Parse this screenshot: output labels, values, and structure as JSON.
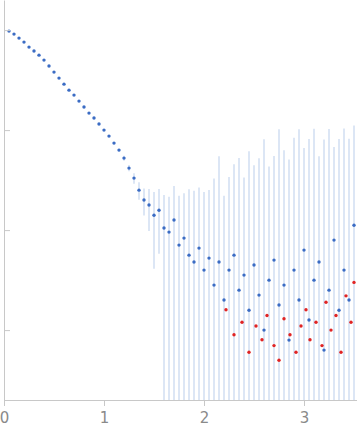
{
  "chart_data": {
    "type": "scatter",
    "log": "y",
    "grid": false,
    "tick_labels": "x",
    "xlim": [
      0,
      3.53
    ],
    "xticks": [
      0,
      1,
      2,
      3
    ],
    "ylim": [
      0.0002,
      2
    ],
    "yticks": [
      0.001,
      0.01,
      0.1,
      1
    ],
    "series": [
      {
        "color": "#3b6cc4",
        "marker": "circle",
        "x": [
          0.05,
          0.1,
          0.15,
          0.2,
          0.25,
          0.3,
          0.35,
          0.4,
          0.45,
          0.5,
          0.55,
          0.6,
          0.65,
          0.7,
          0.75,
          0.8,
          0.85,
          0.9,
          0.95,
          1.0,
          1.05,
          1.1,
          1.15,
          1.2,
          1.25,
          1.3,
          1.35,
          1.4,
          1.45,
          1.5,
          1.55,
          1.6,
          1.65,
          1.7,
          1.75,
          1.8,
          1.85,
          1.9,
          1.95,
          2.0,
          2.05,
          2.1,
          2.15,
          2.2,
          2.25,
          2.3,
          2.35,
          2.4,
          2.45,
          2.5,
          2.55,
          2.6,
          2.65,
          2.7,
          2.75,
          2.8,
          2.85,
          2.9,
          2.95,
          3.0,
          3.05,
          3.1,
          3.15,
          3.2,
          3.25,
          3.3,
          3.35,
          3.4,
          3.45,
          3.5
        ],
        "values": [
          0.977,
          0.912,
          0.832,
          0.759,
          0.676,
          0.617,
          0.562,
          0.501,
          0.437,
          0.38,
          0.331,
          0.288,
          0.251,
          0.224,
          0.195,
          0.17,
          0.148,
          0.132,
          0.115,
          0.1,
          0.0871,
          0.0741,
          0.0631,
          0.0525,
          0.0417,
          0.0331,
          0.0251,
          0.02,
          0.0178,
          0.0141,
          0.0158,
          0.0105,
          0.00955,
          0.0126,
          0.00708,
          0.00832,
          0.00562,
          0.00479,
          0.00661,
          0.00398,
          0.00525,
          0.00282,
          0.00479,
          0.002,
          0.00398,
          0.00562,
          0.00251,
          0.00355,
          0.00158,
          0.00447,
          0.00224,
          0.001,
          0.00316,
          0.00501,
          0.00178,
          0.00282,
          0.000794,
          0.00398,
          0.002,
          0.00631,
          0.00126,
          0.00316,
          0.00479,
          0.000631,
          0.00251,
          0.00794,
          0.00158,
          0.00398,
          0.002,
          0.0112
        ],
        "errors": [
          0.005,
          0.005,
          0.004,
          0.004,
          0.004,
          0.003,
          0.003,
          0.003,
          0.003,
          0.003,
          0.002,
          0.002,
          0.002,
          0.002,
          0.002,
          0.002,
          0.002,
          0.002,
          0.002,
          0.002,
          0.002,
          0.002,
          0.002,
          0.003,
          0.003,
          0.004,
          0.005,
          0.006,
          0.008,
          0.01,
          0.01,
          0.012,
          0.012,
          0.015,
          0.015,
          0.015,
          0.02,
          0.02,
          0.02,
          0.02,
          0.02,
          0.03,
          0.05,
          0.02,
          0.03,
          0.04,
          0.05,
          0.03,
          0.06,
          0.04,
          0.05,
          0.08,
          0.04,
          0.05,
          0.1,
          0.06,
          0.05,
          0.08,
          0.1,
          0.06,
          0.08,
          0.1,
          0.05,
          0.08,
          0.1,
          0.06,
          0.08,
          0.1,
          0.08,
          0.1
        ]
      },
      {
        "color": "#e02424",
        "marker": "circle",
        "x": [
          2.22,
          2.3,
          2.38,
          2.45,
          2.52,
          2.58,
          2.63,
          2.7,
          2.75,
          2.8,
          2.86,
          2.92,
          2.97,
          3.02,
          3.06,
          3.12,
          3.18,
          3.22,
          3.27,
          3.32,
          3.37,
          3.42,
          3.47,
          3.5
        ],
        "values": [
          0.0016,
          0.0009,
          0.0012,
          0.0006,
          0.0011,
          0.0008,
          0.0014,
          0.0007,
          0.0005,
          0.0013,
          0.0009,
          0.0006,
          0.0011,
          0.0016,
          0.0008,
          0.0012,
          0.0007,
          0.0019,
          0.001,
          0.0014,
          0.0006,
          0.0022,
          0.0012,
          0.003
        ]
      }
    ]
  }
}
